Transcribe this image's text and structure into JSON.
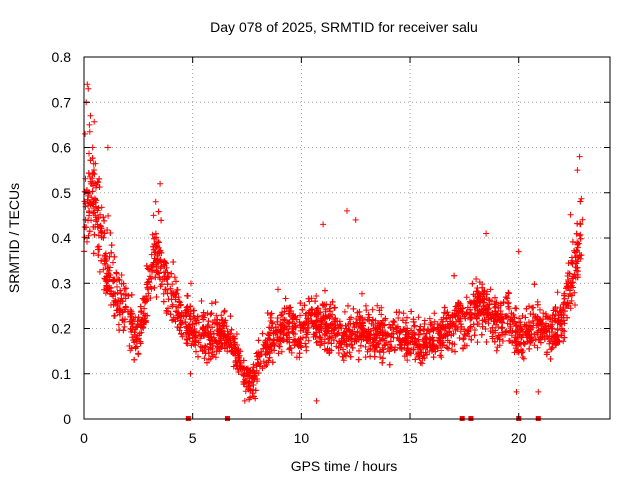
{
  "chart_data": {
    "type": "scatter",
    "title": "Day 078 of 2025, SRMTID for receiver salu",
    "xlabel": "GPS time / hours",
    "ylabel": "SRMTID / TECUs",
    "xlim": [
      0,
      24.2
    ],
    "ylim": [
      0,
      0.8
    ],
    "xticks": [
      0,
      5,
      10,
      15,
      20
    ],
    "yticks": [
      0,
      0.1,
      0.2,
      0.3,
      0.4,
      0.5,
      0.6,
      0.7,
      0.8
    ],
    "xtick_labels": [
      "0",
      "5",
      "10",
      "15",
      "20"
    ],
    "ytick_labels": [
      "0",
      "0.1",
      "0.2",
      "0.3",
      "0.4",
      "0.5",
      "0.6",
      "0.7",
      "0.8"
    ],
    "grid": true,
    "marker": "+",
    "color": "#ff0000",
    "profile": [
      [
        0.0,
        0.4
      ],
      [
        0.1,
        0.47
      ],
      [
        0.2,
        0.5
      ],
      [
        0.3,
        0.52
      ],
      [
        0.5,
        0.48
      ],
      [
        0.8,
        0.4
      ],
      [
        1.0,
        0.33
      ],
      [
        1.3,
        0.3
      ],
      [
        1.6,
        0.26
      ],
      [
        1.9,
        0.24
      ],
      [
        2.2,
        0.2
      ],
      [
        2.5,
        0.18
      ],
      [
        2.8,
        0.25
      ],
      [
        3.0,
        0.3
      ],
      [
        3.3,
        0.37
      ],
      [
        3.6,
        0.33
      ],
      [
        3.9,
        0.28
      ],
      [
        4.2,
        0.26
      ],
      [
        4.5,
        0.22
      ],
      [
        5.0,
        0.2
      ],
      [
        5.5,
        0.18
      ],
      [
        6.0,
        0.17
      ],
      [
        6.5,
        0.2
      ],
      [
        6.8,
        0.16
      ],
      [
        7.1,
        0.14
      ],
      [
        7.4,
        0.09
      ],
      [
        7.7,
        0.08
      ],
      [
        8.0,
        0.11
      ],
      [
        8.4,
        0.16
      ],
      [
        8.8,
        0.19
      ],
      [
        9.2,
        0.21
      ],
      [
        9.6,
        0.2
      ],
      [
        10.0,
        0.19
      ],
      [
        10.5,
        0.23
      ],
      [
        11.0,
        0.21
      ],
      [
        11.5,
        0.19
      ],
      [
        12.0,
        0.18
      ],
      [
        12.5,
        0.19
      ],
      [
        13.0,
        0.18
      ],
      [
        13.5,
        0.19
      ],
      [
        14.0,
        0.18
      ],
      [
        14.5,
        0.19
      ],
      [
        15.0,
        0.17
      ],
      [
        15.5,
        0.17
      ],
      [
        16.0,
        0.18
      ],
      [
        16.5,
        0.19
      ],
      [
        17.0,
        0.2
      ],
      [
        17.2,
        0.22
      ],
      [
        17.6,
        0.21
      ],
      [
        18.0,
        0.25
      ],
      [
        18.5,
        0.24
      ],
      [
        19.0,
        0.21
      ],
      [
        19.5,
        0.23
      ],
      [
        20.0,
        0.18
      ],
      [
        20.5,
        0.2
      ],
      [
        21.0,
        0.2
      ],
      [
        21.5,
        0.19
      ],
      [
        22.0,
        0.21
      ],
      [
        22.3,
        0.29
      ],
      [
        22.6,
        0.33
      ],
      [
        22.9,
        0.42
      ]
    ],
    "spread": [
      [
        0.0,
        0.09
      ],
      [
        1.0,
        0.08
      ],
      [
        2.5,
        0.05
      ],
      [
        3.5,
        0.07
      ],
      [
        5.0,
        0.05
      ],
      [
        7.5,
        0.03
      ],
      [
        9.0,
        0.05
      ],
      [
        12.0,
        0.05
      ],
      [
        15.5,
        0.04
      ],
      [
        18.0,
        0.06
      ],
      [
        20.0,
        0.05
      ],
      [
        22.0,
        0.05
      ],
      [
        22.9,
        0.07
      ]
    ],
    "outliers": [
      [
        0.15,
        0.74
      ],
      [
        0.2,
        0.73
      ],
      [
        0.1,
        0.7
      ],
      [
        0.3,
        0.67
      ],
      [
        0.25,
        0.65
      ],
      [
        0.05,
        0.63
      ],
      [
        1.1,
        0.6
      ],
      [
        0.4,
        0.6
      ],
      [
        3.5,
        0.52
      ],
      [
        3.3,
        0.48
      ],
      [
        3.2,
        0.45
      ],
      [
        11.0,
        0.43
      ],
      [
        12.1,
        0.46
      ],
      [
        12.5,
        0.44
      ],
      [
        22.8,
        0.58
      ],
      [
        22.7,
        0.55
      ],
      [
        18.5,
        0.41
      ],
      [
        20.0,
        0.37
      ],
      [
        10.7,
        0.04
      ],
      [
        4.9,
        0.1
      ],
      [
        7.4,
        0.04
      ],
      [
        20.9,
        0.06
      ],
      [
        19.9,
        0.06
      ]
    ],
    "zero_markers": [
      4.8,
      6.6,
      17.4,
      17.8,
      20.0,
      20.9
    ],
    "x_range_hours": [
      0,
      22.95
    ],
    "point_count": 3600
  }
}
